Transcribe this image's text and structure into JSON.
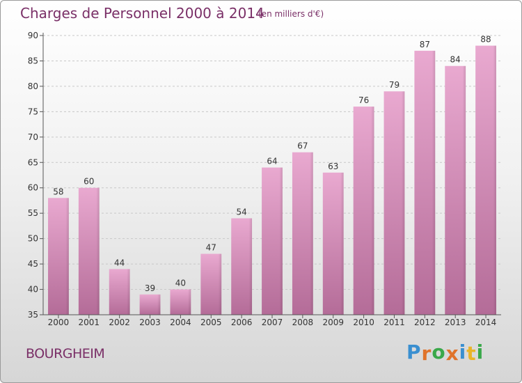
{
  "title": "Charges de Personnel 2000 à 2014",
  "subtitle": "(en milliers d'€)",
  "location": "BOURGHEIM",
  "logo": {
    "text": "Proxiti",
    "colors": [
      "#3a8fd0",
      "#e0732a",
      "#3aa84a",
      "#e0732a",
      "#3a8fd0",
      "#e8b52a",
      "#3aa84a"
    ]
  },
  "colors": {
    "bar_top": "#e9a9d0",
    "bar_bottom": "#b46c98",
    "text": "#7a2f67"
  },
  "chart_data": {
    "type": "bar",
    "title": "Charges de Personnel 2000 à 2014",
    "subtitle": "(en milliers d'€)",
    "categories": [
      "2000",
      "2001",
      "2002",
      "2003",
      "2004",
      "2005",
      "2006",
      "2007",
      "2008",
      "2009",
      "2010",
      "2011",
      "2012",
      "2013",
      "2014"
    ],
    "values": [
      58,
      60,
      44,
      39,
      40,
      47,
      54,
      64,
      67,
      63,
      76,
      79,
      87,
      84,
      88
    ],
    "ylim": [
      35,
      90
    ],
    "yticks": [
      35,
      40,
      45,
      50,
      55,
      60,
      65,
      70,
      75,
      80,
      85,
      90
    ],
    "grid": true,
    "data_labels": true
  }
}
